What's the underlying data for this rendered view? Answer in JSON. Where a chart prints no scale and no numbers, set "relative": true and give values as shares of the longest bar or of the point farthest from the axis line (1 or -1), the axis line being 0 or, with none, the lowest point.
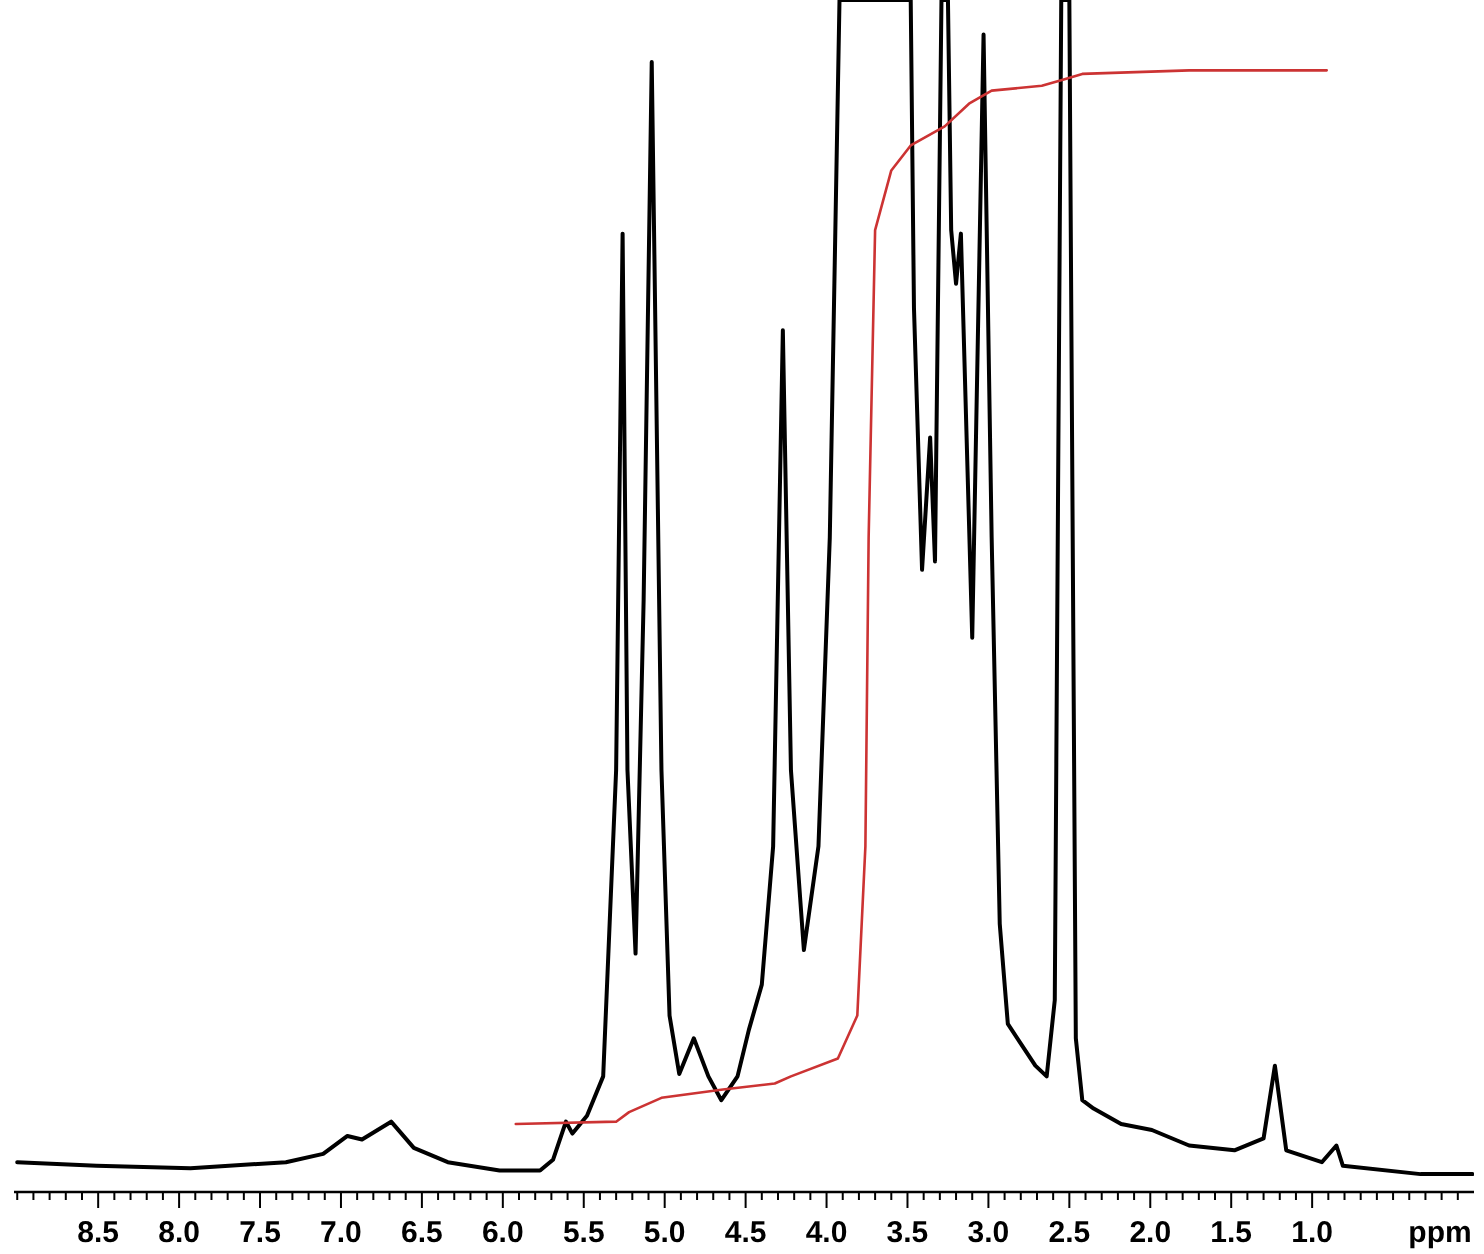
{
  "chart_data": {
    "type": "line",
    "xlabel": "ppm",
    "relative": true,
    "xlim": [
      9.02,
      0.0
    ],
    "xticks": [
      {
        "value": 9.0,
        "label": null
      },
      {
        "value": 8.9,
        "label": null
      },
      {
        "value": 8.8,
        "label": null
      },
      {
        "value": 8.7,
        "label": null
      },
      {
        "value": 8.6,
        "label": null
      },
      {
        "value": 8.5,
        "label": "8.5"
      },
      {
        "value": 8.4,
        "label": null
      },
      {
        "value": 8.3,
        "label": null
      },
      {
        "value": 8.2,
        "label": null
      },
      {
        "value": 8.1,
        "label": null
      },
      {
        "value": 8.0,
        "label": "8.0"
      },
      {
        "value": 7.9,
        "label": null
      },
      {
        "value": 7.8,
        "label": null
      },
      {
        "value": 7.7,
        "label": null
      },
      {
        "value": 7.6,
        "label": null
      },
      {
        "value": 7.5,
        "label": "7.5"
      },
      {
        "value": 7.4,
        "label": null
      },
      {
        "value": 7.3,
        "label": null
      },
      {
        "value": 7.2,
        "label": null
      },
      {
        "value": 7.1,
        "label": null
      },
      {
        "value": 7.0,
        "label": "7.0"
      },
      {
        "value": 6.9,
        "label": null
      },
      {
        "value": 6.8,
        "label": null
      },
      {
        "value": 6.7,
        "label": null
      },
      {
        "value": 6.6,
        "label": null
      },
      {
        "value": 6.5,
        "label": "6.5"
      },
      {
        "value": 6.4,
        "label": null
      },
      {
        "value": 6.3,
        "label": null
      },
      {
        "value": 6.2,
        "label": null
      },
      {
        "value": 6.1,
        "label": null
      },
      {
        "value": 6.0,
        "label": "6.0"
      },
      {
        "value": 5.9,
        "label": null
      },
      {
        "value": 5.8,
        "label": null
      },
      {
        "value": 5.7,
        "label": null
      },
      {
        "value": 5.6,
        "label": null
      },
      {
        "value": 5.5,
        "label": "5.5"
      },
      {
        "value": 5.4,
        "label": null
      },
      {
        "value": 5.3,
        "label": null
      },
      {
        "value": 5.2,
        "label": null
      },
      {
        "value": 5.1,
        "label": null
      },
      {
        "value": 5.0,
        "label": "5.0"
      },
      {
        "value": 4.9,
        "label": null
      },
      {
        "value": 4.8,
        "label": null
      },
      {
        "value": 4.7,
        "label": null
      },
      {
        "value": 4.6,
        "label": null
      },
      {
        "value": 4.5,
        "label": "4.5"
      },
      {
        "value": 4.4,
        "label": null
      },
      {
        "value": 4.3,
        "label": null
      },
      {
        "value": 4.2,
        "label": null
      },
      {
        "value": 4.1,
        "label": null
      },
      {
        "value": 4.0,
        "label": "4.0"
      },
      {
        "value": 3.9,
        "label": null
      },
      {
        "value": 3.8,
        "label": null
      },
      {
        "value": 3.7,
        "label": null
      },
      {
        "value": 3.6,
        "label": null
      },
      {
        "value": 3.5,
        "label": "3.5"
      },
      {
        "value": 3.4,
        "label": null
      },
      {
        "value": 3.3,
        "label": null
      },
      {
        "value": 3.2,
        "label": null
      },
      {
        "value": 3.1,
        "label": null
      },
      {
        "value": 3.0,
        "label": "3.0"
      },
      {
        "value": 2.9,
        "label": null
      },
      {
        "value": 2.8,
        "label": null
      },
      {
        "value": 2.7,
        "label": null
      },
      {
        "value": 2.6,
        "label": null
      },
      {
        "value": 2.5,
        "label": "2.5"
      },
      {
        "value": 2.4,
        "label": null
      },
      {
        "value": 2.3,
        "label": null
      },
      {
        "value": 2.2,
        "label": null
      },
      {
        "value": 2.1,
        "label": null
      },
      {
        "value": 2.0,
        "label": "2.0"
      },
      {
        "value": 1.9,
        "label": null
      },
      {
        "value": 1.8,
        "label": null
      },
      {
        "value": 1.7,
        "label": null
      },
      {
        "value": 1.6,
        "label": null
      },
      {
        "value": 1.5,
        "label": "1.5"
      },
      {
        "value": 1.4,
        "label": null
      },
      {
        "value": 1.3,
        "label": null
      },
      {
        "value": 1.2,
        "label": null
      },
      {
        "value": 1.1,
        "label": null
      },
      {
        "value": 1.0,
        "label": "1.0"
      },
      {
        "value": 0.9,
        "label": null
      },
      {
        "value": 0.8,
        "label": null
      },
      {
        "value": 0.7,
        "label": null
      },
      {
        "value": 0.6,
        "label": null
      },
      {
        "value": 0.5,
        "label": null
      },
      {
        "value": 0.4,
        "label": null
      },
      {
        "value": 0.3,
        "label": null
      },
      {
        "value": 0.2,
        "label": null
      },
      {
        "value": 0.1,
        "label": null
      }
    ],
    "series": [
      {
        "color": "#000000",
        "x": [
          9.0,
          8.51,
          7.93,
          7.34,
          7.11,
          6.96,
          6.87,
          6.69,
          6.55,
          6.34,
          6.02,
          5.77,
          5.69,
          5.61,
          5.57,
          5.48,
          5.38,
          5.3,
          5.26,
          5.23,
          5.18,
          5.13,
          5.08,
          5.02,
          4.97,
          4.91,
          4.82,
          4.73,
          4.65,
          4.55,
          4.48,
          4.4,
          4.33,
          4.27,
          4.22,
          4.14,
          4.05,
          3.98,
          3.92,
          3.48,
          3.46,
          3.41,
          3.36,
          3.33,
          3.29,
          3.25,
          3.23,
          3.2,
          3.17,
          3.1,
          3.03,
          2.98,
          2.93,
          2.88,
          2.71,
          2.64,
          2.59,
          2.55,
          2.5,
          2.46,
          2.42,
          2.35,
          2.18,
          1.99,
          1.76,
          1.48,
          1.3,
          1.23,
          1.16,
          0.94,
          0.85,
          0.81,
          0.33,
          0.01
        ],
        "values": [
          0.025,
          0.022,
          0.02,
          0.025,
          0.032,
          0.047,
          0.044,
          0.059,
          0.037,
          0.025,
          0.018,
          0.018,
          0.027,
          0.059,
          0.049,
          0.064,
          0.097,
          0.354,
          0.804,
          0.354,
          0.2,
          0.497,
          0.948,
          0.354,
          0.148,
          0.099,
          0.129,
          0.097,
          0.077,
          0.097,
          0.136,
          0.174,
          0.29,
          0.723,
          0.354,
          0.203,
          0.29,
          0.549,
          1,
          1,
          0.742,
          0.522,
          0.633,
          0.529,
          1,
          1,
          0.807,
          0.762,
          0.804,
          0.465,
          0.971,
          0.549,
          0.225,
          0.141,
          0.106,
          0.097,
          0.161,
          1,
          1,
          0.129,
          0.077,
          0.07,
          0.057,
          0.052,
          0.039,
          0.035,
          0.045,
          0.106,
          0.035,
          0.025,
          0.039,
          0.022,
          0.015,
          0.015
        ]
      },
      {
        "color": "#cc3333",
        "x": [
          5.92,
          5.3,
          5.22,
          5.02,
          4.64,
          4.32,
          4.22,
          3.93,
          3.81,
          3.76,
          3.74,
          3.7,
          3.6,
          3.48,
          3.27,
          3.12,
          2.98,
          2.67,
          2.54,
          2.42,
          1.76,
          0.91
        ],
        "values": [
          0.057,
          0.059,
          0.067,
          0.079,
          0.086,
          0.091,
          0.097,
          0.112,
          0.148,
          0.29,
          0.549,
          0.807,
          0.857,
          0.878,
          0.894,
          0.913,
          0.924,
          0.928,
          0.933,
          0.938,
          0.941,
          0.941
        ]
      }
    ]
  }
}
